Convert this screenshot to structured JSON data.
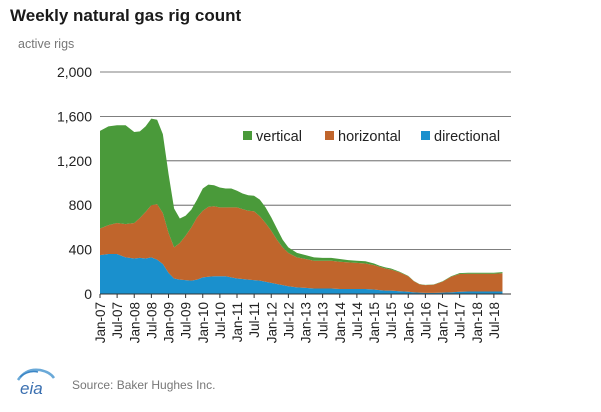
{
  "header": {
    "title": "Weekly natural gas rig count",
    "subtitle": "active rigs"
  },
  "footer": {
    "logo_text": "eia",
    "source": "Source: Baker Hughes Inc."
  },
  "colors": {
    "vertical": "#4a9a3a",
    "horizontal": "#c0652c",
    "directional": "#1a90cd",
    "grid": "#555555",
    "axis": "#333333"
  },
  "chart_data": {
    "type": "area",
    "stacked": true,
    "title": "Weekly natural gas rig count",
    "ylabel": "active rigs",
    "ylim": [
      0,
      2000
    ],
    "y_ticks": [
      0,
      400,
      800,
      1200,
      1600,
      2000
    ],
    "y_tick_labels": [
      "0",
      "400",
      "800",
      "1,200",
      "1,600",
      "2,000"
    ],
    "x_tick_labels": [
      "Jan-07",
      "Jul-07",
      "Jan-08",
      "Jul-08",
      "Jan-09",
      "Jul-09",
      "Jan-10",
      "Jul-10",
      "Jan-11",
      "Jul-11",
      "Jan-12",
      "Jul-12",
      "Jan-13",
      "Jul-13",
      "Jan-14",
      "Jul-14",
      "Jan-15",
      "Jul-15",
      "Jan-16",
      "Jul-16",
      "Jan-17",
      "Jul-17",
      "Jan-18",
      "Jul-18"
    ],
    "legend_position": "top-right",
    "grid": "horizontal",
    "x": [
      "2007-01",
      "2007-04",
      "2007-07",
      "2007-10",
      "2008-01",
      "2008-03",
      "2008-05",
      "2008-07",
      "2008-09",
      "2008-11",
      "2009-01",
      "2009-03",
      "2009-05",
      "2009-07",
      "2009-09",
      "2009-11",
      "2010-01",
      "2010-03",
      "2010-05",
      "2010-07",
      "2010-09",
      "2010-11",
      "2011-01",
      "2011-03",
      "2011-05",
      "2011-07",
      "2011-09",
      "2011-11",
      "2012-01",
      "2012-03",
      "2012-05",
      "2012-07",
      "2012-10",
      "2013-01",
      "2013-04",
      "2013-07",
      "2013-10",
      "2014-01",
      "2014-04",
      "2014-07",
      "2014-10",
      "2015-01",
      "2015-03",
      "2015-05",
      "2015-07",
      "2015-10",
      "2016-01",
      "2016-03",
      "2016-05",
      "2016-07",
      "2016-10",
      "2017-01",
      "2017-04",
      "2017-07",
      "2017-10",
      "2018-01",
      "2018-04",
      "2018-07",
      "2018-10"
    ],
    "series": [
      {
        "name": "directional",
        "values": [
          350,
          360,
          360,
          330,
          320,
          325,
          320,
          330,
          310,
          270,
          190,
          140,
          130,
          125,
          120,
          130,
          150,
          155,
          160,
          160,
          160,
          150,
          140,
          135,
          130,
          125,
          120,
          110,
          100,
          90,
          80,
          70,
          60,
          55,
          50,
          50,
          50,
          45,
          45,
          45,
          45,
          40,
          35,
          30,
          30,
          25,
          20,
          15,
          12,
          10,
          10,
          12,
          15,
          20,
          22,
          22,
          22,
          22,
          22
        ]
      },
      {
        "name": "horizontal",
        "values": [
          240,
          260,
          280,
          300,
          320,
          360,
          420,
          470,
          500,
          460,
          360,
          280,
          330,
          400,
          480,
          560,
          600,
          630,
          630,
          620,
          620,
          630,
          640,
          630,
          620,
          620,
          580,
          530,
          470,
          400,
          340,
          300,
          270,
          260,
          250,
          250,
          250,
          245,
          240,
          235,
          230,
          220,
          210,
          200,
          190,
          170,
          140,
          100,
          75,
          70,
          75,
          100,
          140,
          160,
          160,
          160,
          160,
          160,
          165
        ]
      },
      {
        "name": "vertical",
        "values": [
          880,
          890,
          880,
          890,
          820,
          780,
          770,
          780,
          760,
          710,
          530,
          350,
          220,
          180,
          160,
          160,
          200,
          200,
          190,
          180,
          170,
          170,
          150,
          140,
          140,
          140,
          150,
          140,
          120,
          100,
          70,
          50,
          40,
          35,
          30,
          25,
          25,
          25,
          20,
          20,
          20,
          15,
          10,
          10,
          10,
          5,
          3,
          2,
          2,
          2,
          2,
          3,
          5,
          8,
          10,
          10,
          10,
          10,
          10
        ]
      }
    ]
  }
}
